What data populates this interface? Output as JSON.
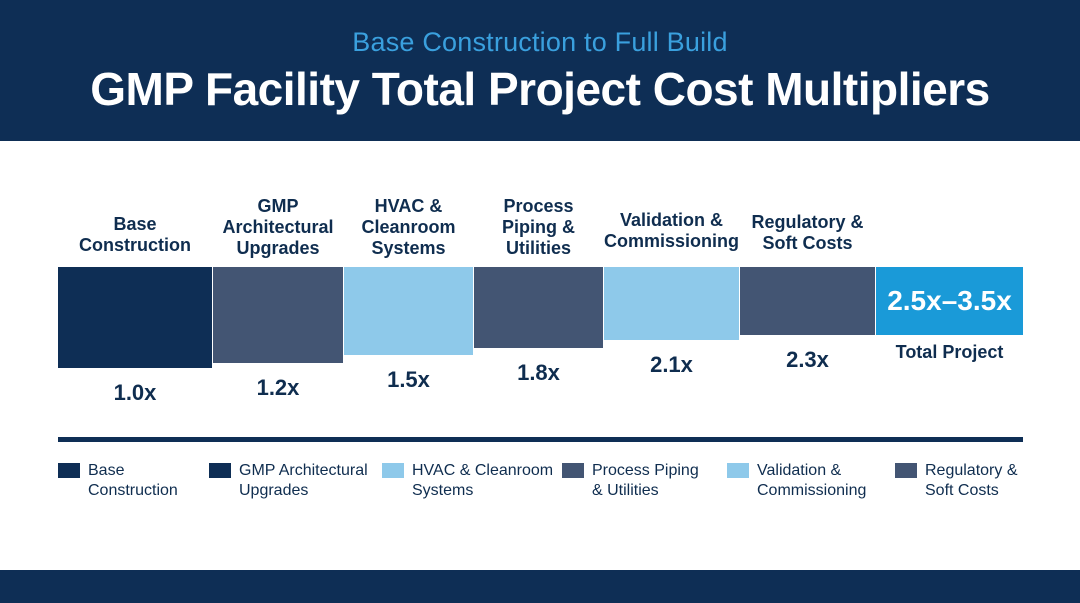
{
  "header": {
    "subtitle": "Base Construction to Full Build",
    "title": "GMP Facility Total Project Cost Multipliers"
  },
  "chart_data": {
    "type": "bar",
    "subtitle": "Base Construction to Full Build",
    "title": "GMP Facility Total Project Cost Multipliers",
    "categories": [
      "Base Construction",
      "GMP Architectural Upgrades",
      "HVAC & Cleanroom Systems",
      "Process Piping & Utilities",
      "Validation & Commissioning",
      "Regulatory & Soft Costs"
    ],
    "category_lines": [
      [
        "Base",
        "Construction"
      ],
      [
        "GMP",
        "Architectural",
        "Upgrades"
      ],
      [
        "HVAC &",
        "Cleanroom",
        "Systems"
      ],
      [
        "Process",
        "Piping &",
        "Utilities"
      ],
      [
        "Validation &",
        "Commissioning"
      ],
      [
        "Regulatory &",
        "Soft Costs"
      ]
    ],
    "values": [
      1.0,
      1.2,
      1.5,
      1.8,
      2.1,
      2.3
    ],
    "value_labels": [
      "1.0x",
      "1.2x",
      "1.5x",
      "1.8x",
      "2.1x",
      "2.3x"
    ],
    "colors": [
      "#0e2e55",
      "#435573",
      "#8ec9ea",
      "#435573",
      "#8ec9ea",
      "#435573"
    ],
    "total": {
      "value_label": "2.5x–3.5x",
      "label": "Total Project",
      "range": [
        2.5,
        3.5
      ],
      "color": "#1a9ad8"
    },
    "legend": {
      "placement": "bottom",
      "items": [
        {
          "lines": [
            "Base",
            "Construction"
          ],
          "color": "#0e2e55"
        },
        {
          "lines": [
            "GMP Architectural",
            "Upgrades"
          ],
          "color": "#0e2e55"
        },
        {
          "lines": [
            "HVAC & Cleanroom",
            "Systems"
          ],
          "color": "#8ec9ea"
        },
        {
          "lines": [
            "Process Piping",
            "& Utilities"
          ],
          "color": "#435573"
        },
        {
          "lines": [
            "Validation &",
            "Commissioning"
          ],
          "color": "#8ec9ea"
        },
        {
          "lines": [
            "Regulatory &",
            "Soft Costs"
          ],
          "color": "#435573"
        }
      ]
    },
    "grid": false
  }
}
